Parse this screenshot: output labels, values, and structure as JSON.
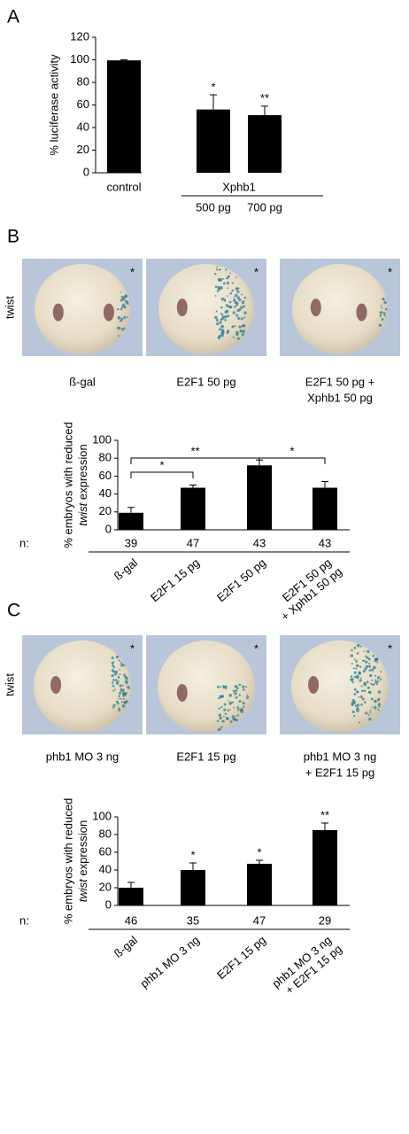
{
  "panel_labels": [
    "A",
    "B",
    "C"
  ],
  "image_rows": [
    {
      "row_label": "twist",
      "corner_mark": "*",
      "captions": [
        [
          "ß-gal"
        ],
        [
          "E2F1 50 pg"
        ],
        [
          "E2F1 50 pg +",
          "Xphb1 50 pg"
        ]
      ]
    },
    {
      "row_label": "twist",
      "corner_mark": "*",
      "captions": [
        [
          "phb1 MO 3 ng"
        ],
        [
          "E2F1 15 pg"
        ],
        [
          "phb1 MO 3 ng",
          "+ E2F1 15 pg"
        ]
      ]
    }
  ],
  "chart_data": [
    {
      "type": "bar",
      "ylabel": "% luciferase activity",
      "categories": [
        "control",
        "500 pg",
        "700 pg"
      ],
      "group": {
        "label": "Xphb1",
        "members": [
          "500 pg",
          "700 pg"
        ]
      },
      "values": [
        99.5,
        56,
        51
      ],
      "errors": [
        0.5,
        13,
        8
      ],
      "annotations": [
        null,
        "*",
        "**"
      ],
      "color": "#000000",
      "ylim": [
        0,
        120
      ],
      "yticks": [
        0,
        20,
        40,
        60,
        80,
        100,
        120
      ]
    },
    {
      "type": "bar",
      "ylabel": {
        "line1": "% embryos with reduced",
        "emph": "twist",
        "line2": " expression"
      },
      "categories": [
        "ß-gal",
        "E2F1 15 pg",
        "E2F1 50 pg",
        "E2F1 50 pg + Xphb1 50 pg"
      ],
      "label_lines": [
        [
          "ß-gal"
        ],
        [
          "E2F1 15 pg"
        ],
        [
          "E2F1 50 pg"
        ],
        [
          "E2F1 50 pg",
          "+ Xphb1 50 pg"
        ]
      ],
      "values": [
        19,
        47,
        72,
        47
      ],
      "errors": [
        6,
        3,
        6,
        7
      ],
      "n_label": "n:",
      "n": [
        39,
        47,
        43,
        43
      ],
      "brackets": [
        {
          "between": [
            "ß-gal",
            "E2F1 15 pg"
          ],
          "label": "*"
        },
        {
          "between": [
            "ß-gal",
            "E2F1 50 pg"
          ],
          "label": "**"
        },
        {
          "between": [
            "E2F1 50 pg",
            "E2F1 50 pg + Xphb1 50 pg"
          ],
          "label": "*"
        }
      ],
      "color": "#000000",
      "ylim": [
        0,
        100
      ],
      "yticks": [
        0,
        20,
        40,
        60,
        80,
        100
      ]
    },
    {
      "type": "bar",
      "ylabel": {
        "line1": "% embryos with reduced",
        "emph": "twist",
        "line2": " expression"
      },
      "categories": [
        "ß-gal",
        "phb1 MO 3 ng",
        "E2F1 15 pg",
        "phb1 MO 3 ng + E2F1 15 pg"
      ],
      "label_lines": [
        [
          "ß-gal"
        ],
        [
          "phb1 MO 3 ng"
        ],
        [
          "E2F1 15 pg"
        ],
        [
          "phb1 MO 3 ng",
          "+ E2F1 15 pg"
        ]
      ],
      "values": [
        20,
        40,
        47,
        85
      ],
      "errors": [
        6,
        8,
        4,
        8
      ],
      "annotations": [
        null,
        "*",
        "*",
        "**"
      ],
      "n_label": "n:",
      "n": [
        46,
        35,
        47,
        29
      ],
      "color": "#000000",
      "ylim": [
        0,
        100
      ],
      "yticks": [
        0,
        20,
        40,
        60,
        80,
        100
      ]
    }
  ]
}
